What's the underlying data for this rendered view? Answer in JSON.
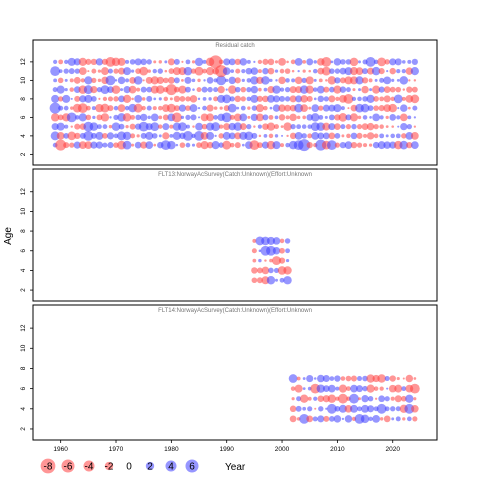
{
  "chart_data": {
    "type": "scatter",
    "subtype": "bubble-residual",
    "xlabel": "Year",
    "ylabel": "Age",
    "xlim": [
      1955,
      2028
    ],
    "ylim": [
      1.5,
      13.5
    ],
    "x_ticks": [
      1960,
      1970,
      1980,
      1990,
      2000,
      2010,
      2020
    ],
    "y_ticks": [
      2,
      4,
      6,
      8,
      10,
      12
    ],
    "colors": {
      "positive": "#4040ff",
      "negative": "#ff4040"
    },
    "legend": {
      "values": [
        -8,
        -6,
        -4,
        -2,
        0,
        2,
        4,
        6
      ],
      "labels": [
        "-8",
        "-6",
        "-4",
        "-2",
        "0",
        "2",
        "4",
        "6"
      ]
    },
    "panels": [
      {
        "title": "Residual catch",
        "years": [
          1959,
          2024
        ],
        "ages": [
          3,
          4,
          5,
          6,
          7,
          8,
          9,
          10,
          11,
          12
        ],
        "highlights": [
          {
            "year": 1959,
            "age": 7,
            "value": 4
          },
          {
            "year": 1959,
            "age": 11,
            "value": 3
          },
          {
            "year": 1960,
            "age": 3,
            "value": -4
          },
          {
            "year": 1962,
            "age": 6,
            "value": 3
          },
          {
            "year": 1964,
            "age": 7,
            "value": -3
          },
          {
            "year": 1965,
            "age": 4,
            "value": 3
          },
          {
            "year": 1965,
            "age": 5,
            "value": 3
          },
          {
            "year": 1969,
            "age": 10,
            "value": 3
          },
          {
            "year": 1969,
            "age": 12,
            "value": -3
          },
          {
            "year": 1975,
            "age": 5,
            "value": 3
          },
          {
            "year": 1979,
            "age": 3,
            "value": 3
          },
          {
            "year": 1980,
            "age": 9,
            "value": -4
          },
          {
            "year": 1981,
            "age": 6,
            "value": -3
          },
          {
            "year": 1983,
            "age": 4,
            "value": 3
          },
          {
            "year": 1985,
            "age": 4,
            "value": 3
          },
          {
            "year": 1988,
            "age": 12,
            "value": -6
          },
          {
            "year": 1989,
            "age": 11,
            "value": -5
          },
          {
            "year": 1989,
            "age": 10,
            "value": 3
          },
          {
            "year": 1990,
            "age": 6,
            "value": 3
          },
          {
            "year": 1995,
            "age": 3,
            "value": -3
          },
          {
            "year": 2003,
            "age": 3,
            "value": 3
          },
          {
            "year": 2004,
            "age": 3,
            "value": 5
          },
          {
            "year": 2007,
            "age": 3,
            "value": 4
          },
          {
            "year": 2008,
            "age": 12,
            "value": -3
          },
          {
            "year": 2009,
            "age": 3,
            "value": 3
          },
          {
            "year": 2012,
            "age": 8,
            "value": -3
          },
          {
            "year": 2016,
            "age": 12,
            "value": 3
          }
        ]
      },
      {
        "title": "FLT13:NorwayAcSurvey(Catch:Unknown)(Effort:Unknown",
        "years": [
          1995,
          2001
        ],
        "ages": [
          3,
          4,
          5,
          6,
          7
        ],
        "highlights": [
          {
            "year": 1997,
            "age": 6,
            "value": 3
          },
          {
            "year": 1998,
            "age": 6,
            "value": 3
          },
          {
            "year": 2001,
            "age": 3,
            "value": 2
          },
          {
            "year": 2001,
            "age": 4,
            "value": -2
          }
        ]
      },
      {
        "title": "FLT14:NorwayAcSurvey(Catch:Unknown)(Effort:Unknown",
        "years": [
          2002,
          2024
        ],
        "ages": [
          3,
          4,
          5,
          6,
          7
        ],
        "highlights": [
          {
            "year": 2004,
            "age": 3,
            "value": 3
          },
          {
            "year": 2006,
            "age": 6,
            "value": -3
          },
          {
            "year": 2009,
            "age": 4,
            "value": 3
          },
          {
            "year": 2011,
            "age": 5,
            "value": -3
          },
          {
            "year": 2013,
            "age": 5,
            "value": 3
          },
          {
            "year": 2014,
            "age": 3,
            "value": 3
          },
          {
            "year": 2018,
            "age": 4,
            "value": 3
          },
          {
            "year": 2023,
            "age": 4,
            "value": 3
          },
          {
            "year": 2024,
            "age": 6,
            "value": -3
          }
        ]
      }
    ]
  }
}
